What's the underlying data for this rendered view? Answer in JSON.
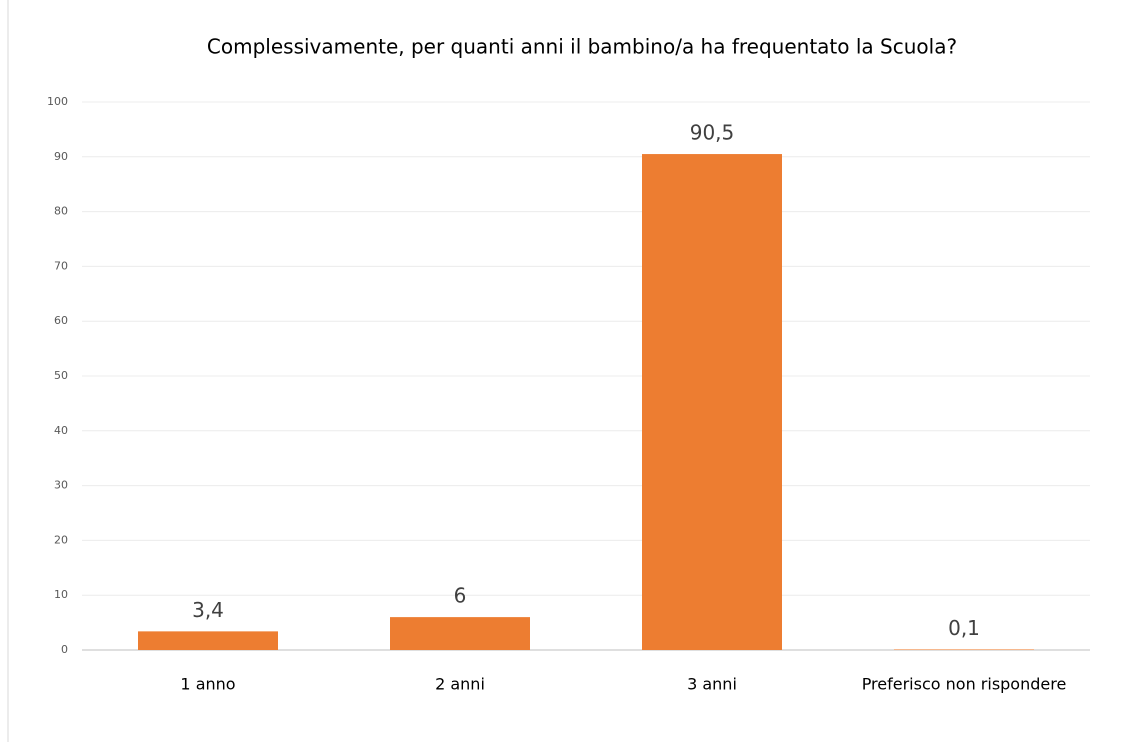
{
  "chart_data": {
    "type": "bar",
    "title": "Complessivamente, per quanti anni il bambino/a ha frequentato la Scuola?",
    "categories": [
      "1 anno",
      "2 anni",
      "3 anni",
      "Preferisco  non rispondere"
    ],
    "values": [
      3.4,
      6,
      90.5,
      0.1
    ],
    "value_labels": [
      "3,4",
      "6",
      "90,5",
      "0,1"
    ],
    "color": "#ed7d31",
    "ylim": [
      0,
      100
    ],
    "yticks": [
      0,
      10,
      20,
      30,
      40,
      50,
      60,
      70,
      80,
      90,
      100
    ],
    "grid": true
  }
}
